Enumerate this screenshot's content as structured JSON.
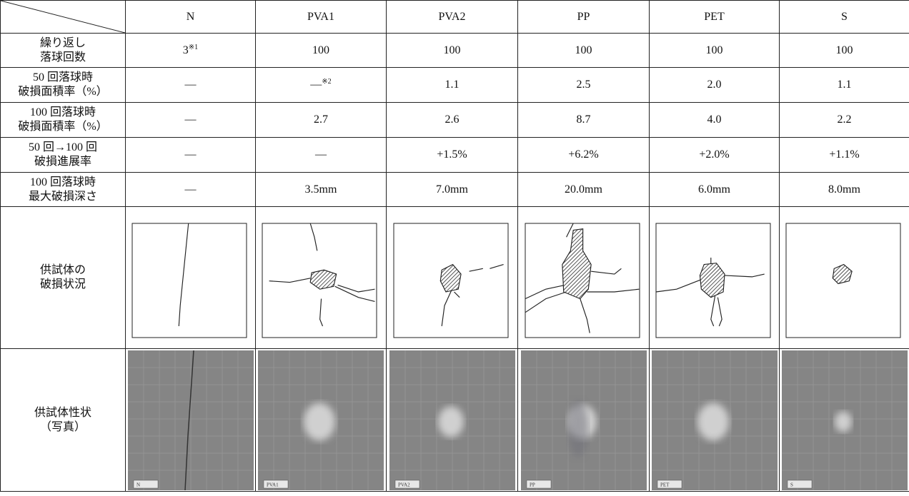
{
  "table": {
    "columns": [
      "N",
      "PVA1",
      "PVA2",
      "PP",
      "PET",
      "S"
    ],
    "rows": [
      {
        "label": [
          "繰り返し",
          "落球回数"
        ],
        "cells": [
          {
            "text": "3",
            "note": "※1"
          },
          "100",
          "100",
          "100",
          "100",
          "100"
        ]
      },
      {
        "label": [
          "50 回落球時",
          "破損面積率（%）"
        ],
        "cells": [
          "—",
          {
            "text": "—",
            "note": "※2"
          },
          "1.1",
          "2.5",
          "2.0",
          "1.1"
        ]
      },
      {
        "label": [
          "100 回落球時",
          "破損面積率（%）"
        ],
        "cells": [
          "—",
          "2.7",
          "2.6",
          "8.7",
          "4.0",
          "2.2"
        ]
      },
      {
        "label": [
          "50 回→100 回",
          "破損進展率"
        ],
        "cells": [
          "—",
          "—",
          "+1.5%",
          "+6.2%",
          "+2.0%",
          "+1.1%"
        ]
      },
      {
        "label": [
          "100 回落球時",
          "最大破損深さ"
        ],
        "cells": [
          "—",
          "3.5mm",
          "7.0mm",
          "20.0mm",
          "6.0mm",
          "8.0mm"
        ]
      }
    ],
    "sketch_row": {
      "label": [
        "供試体の",
        "破損状況"
      ]
    },
    "photo_row": {
      "label": [
        "供試体性状",
        "（写真）"
      ],
      "tags": [
        "N",
        "PVA1",
        "PVA2",
        "PP",
        "PET",
        "S"
      ]
    }
  }
}
